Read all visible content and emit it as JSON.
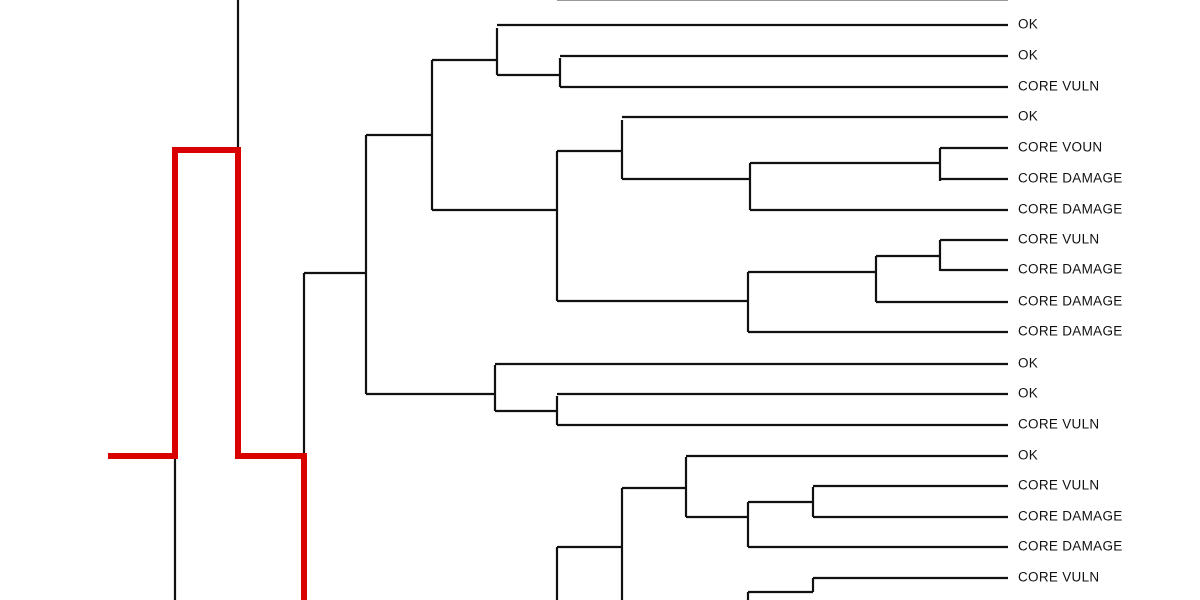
{
  "nodes": [
    {
      "label": "OK"
    },
    {
      "label": "OK"
    },
    {
      "label": "CORE VULN"
    },
    {
      "label": "OK"
    },
    {
      "label": "CORE VOUN"
    },
    {
      "label": "CORE DAMAGE"
    },
    {
      "label": "CORE DAMAGE"
    },
    {
      "label": "CORE VULN"
    },
    {
      "label": "CORE DAMAGE"
    },
    {
      "label": "CORE DAMAGE"
    },
    {
      "label": "CORE DAMAGE"
    },
    {
      "label": "OK"
    },
    {
      "label": "OK"
    },
    {
      "label": "CORE VULN"
    },
    {
      "label": "OK"
    },
    {
      "label": "CORE VULN"
    },
    {
      "label": "CORE DAMAGE"
    },
    {
      "label": "CORE DAMAGE"
    },
    {
      "label": "CORE VULN"
    }
  ]
}
